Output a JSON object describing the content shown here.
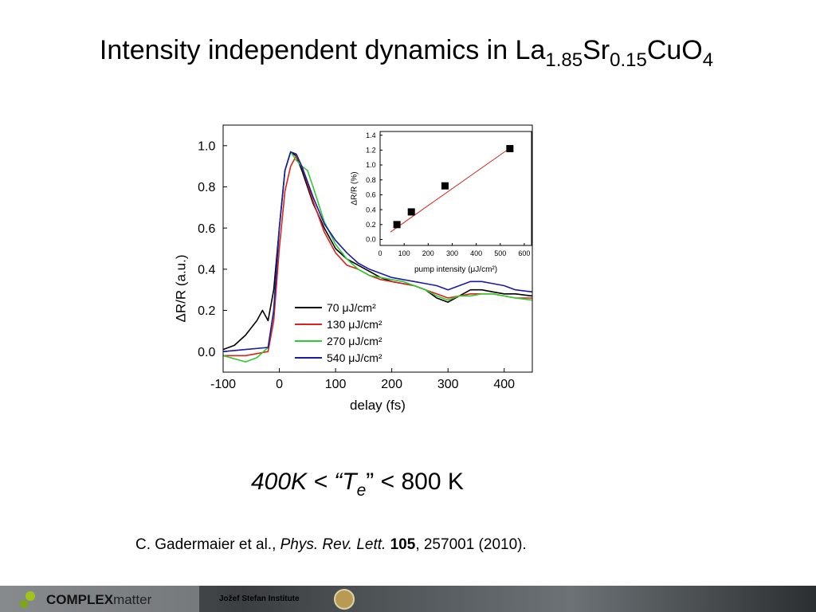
{
  "title": [
    "Intensity independent dynamics in La",
    "1.85",
    "Sr",
    "0.15",
    "CuO",
    "4"
  ],
  "chart_data": [
    {
      "type": "line",
      "x_label": "delay (fs)",
      "y_label": "ΔR/R (a.u.)",
      "xlim": [
        -100,
        450
      ],
      "ylim": [
        -0.1,
        1.1
      ],
      "xticks": [
        -100,
        0,
        100,
        200,
        300,
        400
      ],
      "yticks": [
        {
          "value": 0,
          "label": "0.0"
        },
        0.2,
        0.4,
        0.6,
        0.8,
        {
          "value": 1,
          "label": "1.0"
        }
      ],
      "legend": "lower center",
      "series": [
        {
          "name": "70 μJ/cm²",
          "color": "#000000",
          "x": [
            -100,
            -80,
            -60,
            -40,
            -30,
            -20,
            -10,
            0,
            10,
            20,
            30,
            40,
            60,
            80,
            100,
            120,
            140,
            160,
            180,
            200,
            220,
            240,
            260,
            280,
            300,
            320,
            340,
            360,
            380,
            400,
            420,
            450
          ],
          "values": [
            0.01,
            0.03,
            0.08,
            0.15,
            0.2,
            0.15,
            0.3,
            0.6,
            0.88,
            0.97,
            0.95,
            0.88,
            0.72,
            0.6,
            0.5,
            0.45,
            0.42,
            0.39,
            0.36,
            0.34,
            0.33,
            0.32,
            0.3,
            0.26,
            0.24,
            0.27,
            0.3,
            0.3,
            0.29,
            0.28,
            0.28,
            0.27
          ]
        },
        {
          "name": "130 μJ/cm²",
          "color": "#e0201a",
          "x": [
            -100,
            -60,
            -20,
            -10,
            0,
            10,
            20,
            30,
            40,
            60,
            80,
            100,
            120,
            140,
            160,
            180,
            200,
            220,
            240,
            260,
            280,
            300,
            320,
            340,
            360,
            380,
            400,
            420,
            450
          ],
          "values": [
            -0.02,
            -0.02,
            0.0,
            0.15,
            0.5,
            0.78,
            0.9,
            0.95,
            0.9,
            0.73,
            0.58,
            0.48,
            0.42,
            0.4,
            0.37,
            0.35,
            0.34,
            0.33,
            0.32,
            0.3,
            0.28,
            0.26,
            0.27,
            0.28,
            0.28,
            0.28,
            0.27,
            0.26,
            0.26
          ]
        },
        {
          "name": "270 μJ/cm²",
          "color": "#2ecc2e",
          "x": [
            -100,
            -60,
            -40,
            -20,
            -10,
            0,
            10,
            20,
            30,
            40,
            50,
            60,
            80,
            100,
            120,
            140,
            160,
            180,
            200,
            220,
            240,
            260,
            280,
            300,
            320,
            340,
            360,
            380,
            400,
            420,
            450
          ],
          "values": [
            -0.02,
            -0.05,
            -0.03,
            0.02,
            0.2,
            0.6,
            0.88,
            0.97,
            0.93,
            0.9,
            0.88,
            0.8,
            0.63,
            0.52,
            0.45,
            0.4,
            0.37,
            0.36,
            0.35,
            0.34,
            0.32,
            0.3,
            0.27,
            0.25,
            0.27,
            0.27,
            0.28,
            0.28,
            0.27,
            0.26,
            0.25
          ]
        },
        {
          "name": "540 μJ/cm²",
          "color": "#1a1aa8",
          "x": [
            -100,
            -60,
            -20,
            -10,
            0,
            10,
            20,
            30,
            40,
            60,
            80,
            100,
            120,
            140,
            160,
            180,
            200,
            220,
            240,
            260,
            280,
            300,
            320,
            340,
            360,
            380,
            400,
            420,
            450
          ],
          "values": [
            0.0,
            0.01,
            0.02,
            0.2,
            0.6,
            0.88,
            0.97,
            0.96,
            0.9,
            0.75,
            0.62,
            0.54,
            0.48,
            0.43,
            0.4,
            0.38,
            0.36,
            0.35,
            0.34,
            0.33,
            0.32,
            0.3,
            0.32,
            0.34,
            0.34,
            0.33,
            0.32,
            0.3,
            0.29
          ]
        }
      ]
    },
    {
      "type": "scatter",
      "x_label": "pump intensity (μJ/cm²)",
      "y_label": "ΔR/R (%)",
      "xlim": [
        0,
        630
      ],
      "ylim": [
        -0.08,
        1.45
      ],
      "xticks": [
        0,
        100,
        200,
        300,
        400,
        500,
        600
      ],
      "yticks": [
        {
          "value": 0,
          "label": "0.0"
        },
        0.2,
        0.4,
        0.6,
        0.8,
        {
          "value": 1,
          "label": "1.0"
        },
        1.2,
        1.4
      ],
      "series": [
        {
          "mode": "line",
          "color": "#d42020",
          "x": [
            43,
            550
          ],
          "values": [
            0.1,
            1.25
          ]
        },
        {
          "mode": "markers",
          "marker": "square",
          "color": "#000000",
          "x": [
            70,
            130,
            270,
            540
          ],
          "values": [
            0.2,
            0.37,
            0.72,
            1.22
          ]
        }
      ]
    }
  ],
  "note": [
    "400K < “T",
    "e",
    "” < 800 K"
  ],
  "citation": [
    "C. Gadermaier et al., ",
    "Phys. Rev. Lett.",
    " ",
    "105",
    ", 257001 (2010)."
  ],
  "footer": {
    "logo": [
      "COMPLEX",
      "matter"
    ],
    "institute": "Jožef Stefan Institute"
  }
}
